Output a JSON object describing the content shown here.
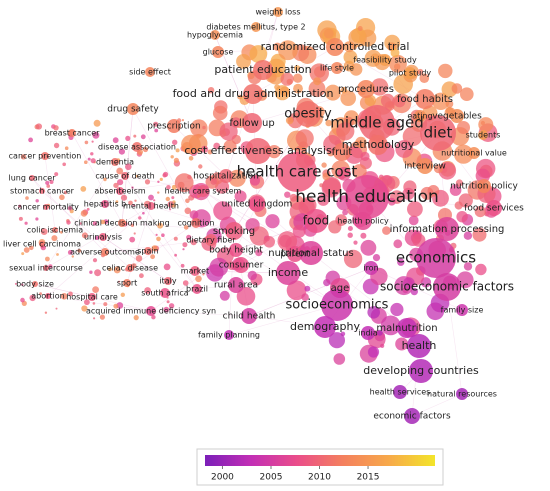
{
  "network": {
    "nodes": [
      {
        "label": "weight loss",
        "year": 2015
      },
      {
        "label": "diabetes mellitus, type 2",
        "year": 2015
      },
      {
        "label": "hypoglycemia",
        "year": 2014
      },
      {
        "label": "glucose",
        "year": 2013
      },
      {
        "label": "randomized controlled trial",
        "year": 2013
      },
      {
        "label": "feasibility study",
        "year": 2016
      },
      {
        "label": "side effect",
        "year": 2013
      },
      {
        "label": "patient education",
        "year": 2011
      },
      {
        "label": "life style",
        "year": 2013
      },
      {
        "label": "pilot study",
        "year": 2016
      },
      {
        "label": "drug safety",
        "year": 2013
      },
      {
        "label": "food and drug administration",
        "year": 2011
      },
      {
        "label": "procedures",
        "year": 2013
      },
      {
        "label": "food habits",
        "year": 2012
      },
      {
        "label": "eating",
        "year": 2014
      },
      {
        "label": "vegetables",
        "year": 2014
      },
      {
        "label": "prescription",
        "year": 2012
      },
      {
        "label": "follow up",
        "year": 2010
      },
      {
        "label": "obesity",
        "year": 2011
      },
      {
        "label": "middle aged",
        "year": 2010
      },
      {
        "label": "diet",
        "year": 2010
      },
      {
        "label": "students",
        "year": 2016
      },
      {
        "label": "breast cancer",
        "year": 2012
      },
      {
        "label": "methodology",
        "year": 2011
      },
      {
        "label": "disease association",
        "year": 2011
      },
      {
        "label": "cost effectiveness analysis",
        "year": 2010
      },
      {
        "label": "fruit",
        "year": 2012
      },
      {
        "label": "interview",
        "year": 2014
      },
      {
        "label": "nutritional value",
        "year": 2014
      },
      {
        "label": "cancer prevention",
        "year": 2011
      },
      {
        "label": "dementia",
        "year": 2011
      },
      {
        "label": "lung cancer",
        "year": 2010
      },
      {
        "label": "cause of death",
        "year": 2010
      },
      {
        "label": "health care cost",
        "year": 2009
      },
      {
        "label": "nutrition policy",
        "year": 2013
      },
      {
        "label": "hospitalization",
        "year": 2010
      },
      {
        "label": "stomach cancer",
        "year": 2010
      },
      {
        "label": "absenteeism",
        "year": 2009
      },
      {
        "label": "health care system",
        "year": 2009
      },
      {
        "label": "health education",
        "year": 2007
      },
      {
        "label": "cancer mortality",
        "year": 2010
      },
      {
        "label": "hepatitis b",
        "year": 2008
      },
      {
        "label": "mental health",
        "year": 2009
      },
      {
        "label": "food services",
        "year": 2008
      },
      {
        "label": "clinical decision making",
        "year": 2012
      },
      {
        "label": "cognition",
        "year": 2011
      },
      {
        "label": "united kingdom",
        "year": 2008
      },
      {
        "label": "colic ischemia",
        "year": 2011
      },
      {
        "label": "urinalysis",
        "year": 2009
      },
      {
        "label": "dietary fiber",
        "year": 2010
      },
      {
        "label": "smoking",
        "year": 2009
      },
      {
        "label": "food",
        "year": 2008
      },
      {
        "label": "health policy",
        "year": 2007
      },
      {
        "label": "information processing",
        "year": 2006
      },
      {
        "label": "liver cell carcinoma",
        "year": 2011
      },
      {
        "label": "adverse outcome",
        "year": 2012
      },
      {
        "label": "spain",
        "year": 2011
      },
      {
        "label": "body height",
        "year": 2008
      },
      {
        "label": "parent",
        "year": 2008
      },
      {
        "label": "nutritional status",
        "year": 2006
      },
      {
        "label": "economics",
        "year": 2005
      },
      {
        "label": "sexual intercourse",
        "year": 2010
      },
      {
        "label": "celiac disease",
        "year": 2011
      },
      {
        "label": "market",
        "year": 2009
      },
      {
        "label": "consumer",
        "year": 2008
      },
      {
        "label": "iron",
        "year": 2004
      },
      {
        "label": "income",
        "year": 2006
      },
      {
        "label": "italy",
        "year": 2010
      },
      {
        "label": "brazil",
        "year": 2008
      },
      {
        "label": "rural area",
        "year": 2006
      },
      {
        "label": "age",
        "year": 2007
      },
      {
        "label": "body size",
        "year": 2011
      },
      {
        "label": "sport",
        "year": 2012
      },
      {
        "label": "abortion",
        "year": 2009
      },
      {
        "label": "hospital care",
        "year": 2009
      },
      {
        "label": "south africa",
        "year": 2008
      },
      {
        "label": "socioeconomic factors",
        "year": 2005
      },
      {
        "label": "acquired immune deficiency syn",
        "year": 2007
      },
      {
        "label": "socioeconomics",
        "year": 2004
      },
      {
        "label": "child health",
        "year": 2005
      },
      {
        "label": "family size",
        "year": 2004
      },
      {
        "label": "demography",
        "year": 2003
      },
      {
        "label": "india",
        "year": 2003
      },
      {
        "label": "malnutrition",
        "year": 2003
      },
      {
        "label": "family planning",
        "year": 2003
      },
      {
        "label": "health",
        "year": 2002
      },
      {
        "label": "developing countries",
        "year": 2002
      },
      {
        "label": "health services",
        "year": 2001
      },
      {
        "label": "natural resources",
        "year": 2001
      },
      {
        "label": "economic factors",
        "year": 2001
      }
    ],
    "colorbar": {
      "lim": [
        1998.2,
        2021.9
      ],
      "ticks": [
        2000,
        2005,
        2010,
        2015
      ],
      "colors": [
        "#7b1fb8",
        "#c22fb5",
        "#ea4d8a",
        "#f4805e",
        "#f7a94a",
        "#f3e52a"
      ]
    }
  }
}
